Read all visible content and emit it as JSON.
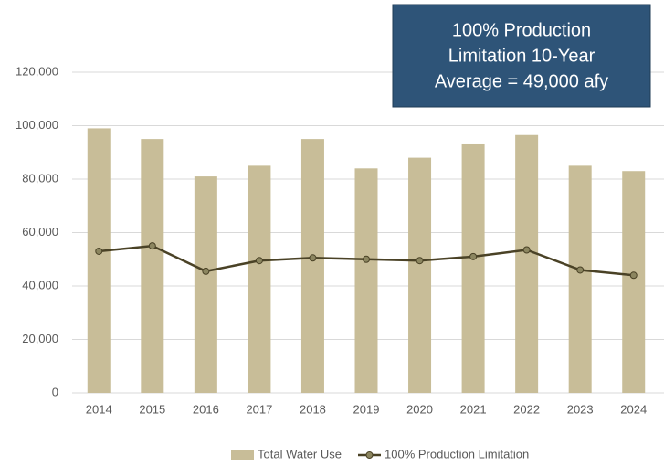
{
  "chart_data": {
    "type": "bar_line",
    "annotation": [
      "100% Production",
      "Limitation 10-Year",
      "Average = 49,000 afy"
    ],
    "categories": [
      "2014",
      "2015",
      "2016",
      "2017",
      "2018",
      "2019",
      "2020",
      "2021",
      "2022",
      "2023",
      "2024"
    ],
    "series": [
      {
        "name": "Total Water Use",
        "type": "bar",
        "color": "#c8bd98",
        "values": [
          99000,
          95000,
          81000,
          85000,
          95000,
          84000,
          88000,
          93000,
          96500,
          85000,
          83000
        ]
      },
      {
        "name": "100% Production Limitation",
        "type": "line",
        "color": "#4a4226",
        "marker_color": "#8c8660",
        "values": [
          53000,
          55000,
          45500,
          49500,
          50500,
          50000,
          49500,
          51000,
          53500,
          46000,
          44000
        ]
      }
    ],
    "ylim": [
      0,
      120000
    ],
    "yticks": [
      0,
      {
        "value": 20000,
        "label": "20,000"
      },
      {
        "value": 40000,
        "label": "40,000"
      },
      {
        "value": 60000,
        "label": "60,000"
      },
      {
        "value": 80000,
        "label": "80,000"
      },
      {
        "value": 100000,
        "label": "100,000"
      },
      {
        "value": 120000,
        "label": "120,000"
      }
    ],
    "grid": true,
    "legend": "bottom"
  }
}
